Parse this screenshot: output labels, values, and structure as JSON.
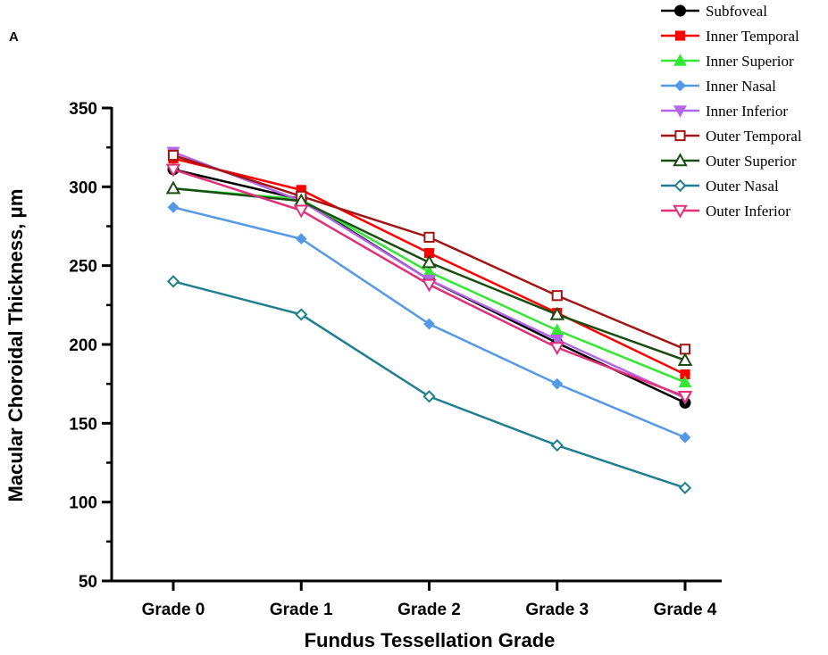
{
  "chart_data": {
    "type": "line",
    "panel_label": "A",
    "title": "",
    "xlabel": "Fundus Tessellation Grade",
    "ylabel": "Macular Choroidal Thickness, μm",
    "categories": [
      "Grade 0",
      "Grade 1",
      "Grade 2",
      "Grade 3",
      "Grade 4"
    ],
    "ylim": [
      50,
      350
    ],
    "yticks": [
      50,
      100,
      150,
      200,
      250,
      300,
      350
    ],
    "grid": false,
    "legend_position": "top-right",
    "series": [
      {
        "name": "Subfoveal",
        "color": "#000000",
        "marker": "circle",
        "filled": true,
        "values": [
          311,
          292,
          241,
          201,
          163
        ]
      },
      {
        "name": "Inner Temporal",
        "color": "#ff0000",
        "marker": "square",
        "filled": true,
        "values": [
          318,
          298,
          258,
          220,
          181
        ]
      },
      {
        "name": "Inner Superior",
        "color": "#33e833",
        "marker": "triangle-up",
        "filled": true,
        "values": [
          299,
          292,
          246,
          209,
          176
        ]
      },
      {
        "name": "Inner Nasal",
        "color": "#5599e6",
        "marker": "diamond",
        "filled": true,
        "values": [
          287,
          267,
          213,
          175,
          141
        ]
      },
      {
        "name": "Inner Inferior",
        "color": "#b366e6",
        "marker": "triangle-down",
        "filled": true,
        "values": [
          322,
          291,
          241,
          203,
          166
        ]
      },
      {
        "name": "Outer Temporal",
        "color": "#a31515",
        "marker": "square",
        "filled": false,
        "values": [
          320,
          294,
          268,
          231,
          197
        ]
      },
      {
        "name": "Outer Superior",
        "color": "#1a4d12",
        "marker": "triangle-up",
        "filled": false,
        "values": [
          299,
          291,
          252,
          219,
          190
        ]
      },
      {
        "name": "Outer Nasal",
        "color": "#1f7f8f",
        "marker": "diamond",
        "filled": false,
        "values": [
          240,
          219,
          167,
          136,
          109
        ]
      },
      {
        "name": "Outer Inferior",
        "color": "#e0307a",
        "marker": "triangle-down",
        "filled": false,
        "values": [
          311,
          285,
          238,
          198,
          167
        ]
      }
    ]
  }
}
